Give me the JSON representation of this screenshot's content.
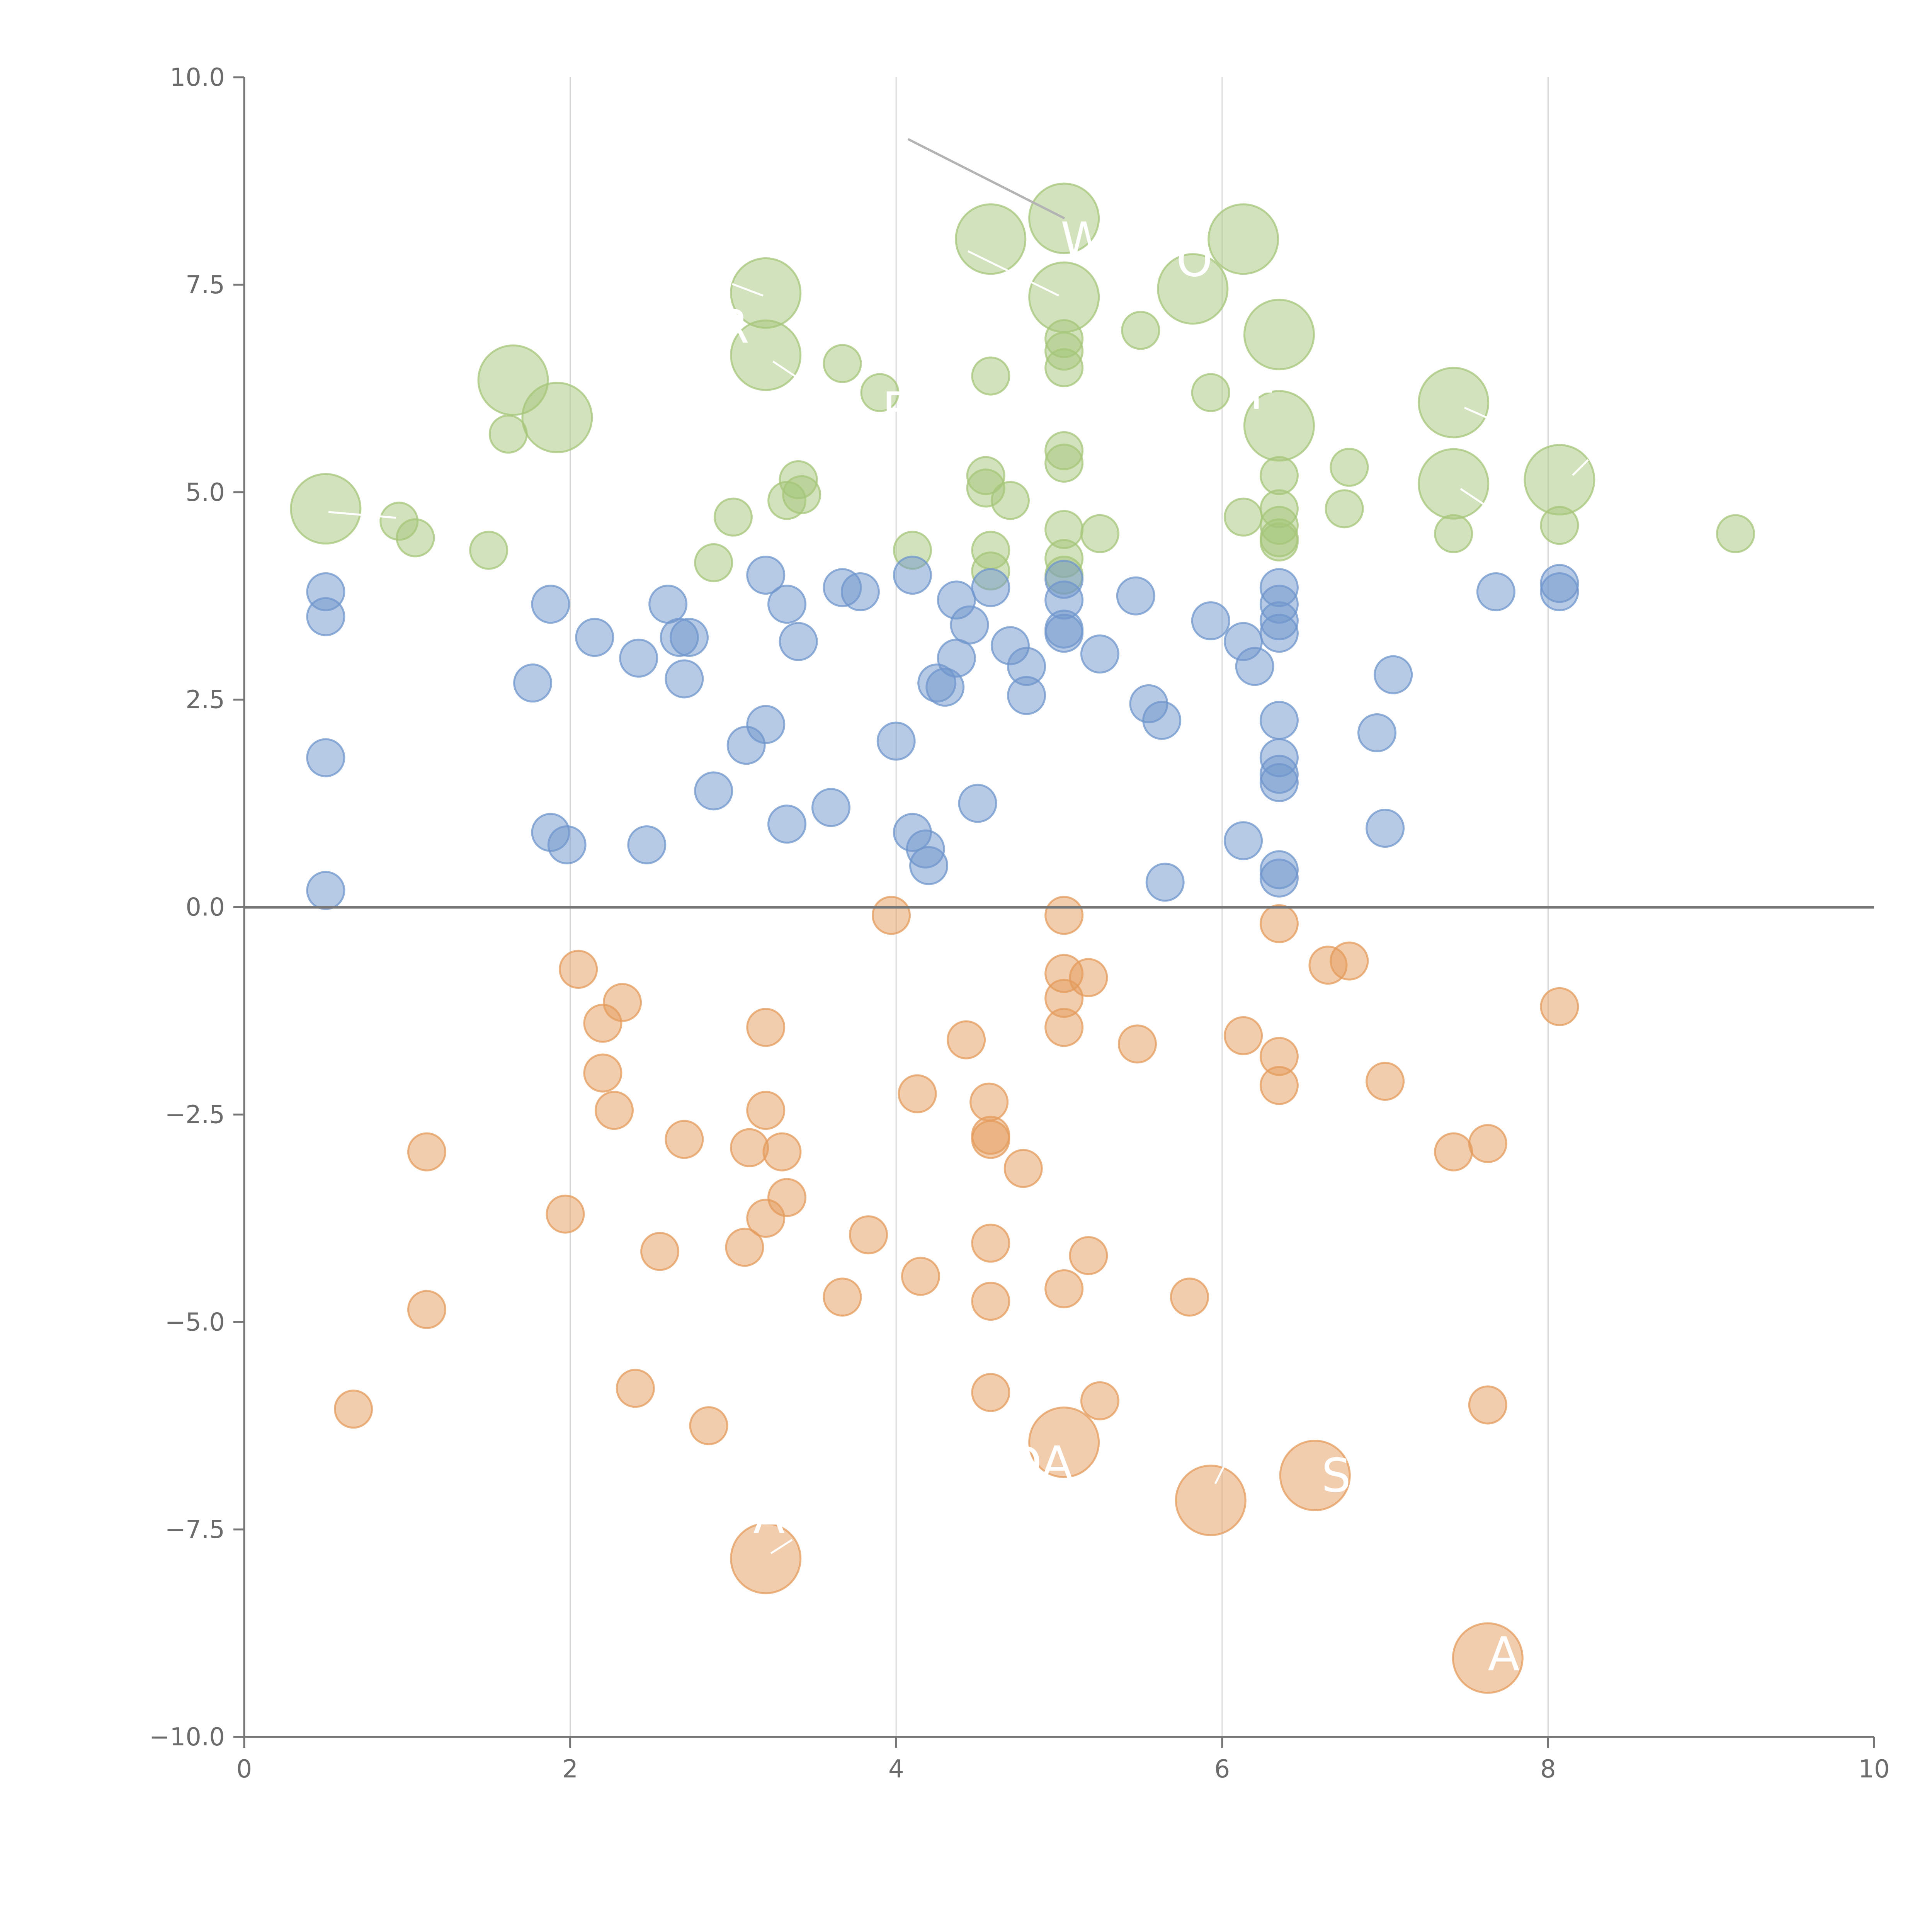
{
  "chart_data": {
    "type": "scatter",
    "title": "",
    "xlabel": "",
    "ylabel": "",
    "xlim": [
      0,
      10
    ],
    "ylim": [
      -10,
      10
    ],
    "x_ticks": [
      "0",
      "2",
      "4",
      "6",
      "8",
      "10"
    ],
    "y_ticks": [
      "10.0",
      "7.5",
      "5.0",
      "2.5",
      "0.0",
      "−2.5",
      "−5.0",
      "−7.5",
      "−10.0"
    ],
    "grid": "vertical",
    "zero_line": 0,
    "colors": {
      "green": "#a5c67a",
      "blue": "#6f96cc",
      "orange": "#e49b5c",
      "axis": "#777777",
      "grid": "#d9d9d9"
    },
    "series": [
      {
        "name": "green",
        "color": "#a5c67a",
        "points": [
          [
            0.5,
            4.8,
            1
          ],
          [
            0.95,
            4.65,
            0
          ],
          [
            1.05,
            4.45,
            0
          ],
          [
            1.5,
            4.3,
            0
          ],
          [
            1.62,
            5.7,
            0
          ],
          [
            1.65,
            6.35,
            1
          ],
          [
            1.92,
            5.9,
            1
          ],
          [
            2.88,
            4.15,
            0
          ],
          [
            3.0,
            4.7,
            0
          ],
          [
            3.2,
            7.4,
            1
          ],
          [
            3.2,
            6.65,
            1
          ],
          [
            3.33,
            4.9,
            0
          ],
          [
            3.4,
            5.15,
            0
          ],
          [
            3.42,
            4.97,
            0
          ],
          [
            3.67,
            6.55,
            0
          ],
          [
            3.9,
            6.2,
            0
          ],
          [
            4.1,
            4.3,
            0
          ],
          [
            4.55,
            5.2,
            0
          ],
          [
            4.55,
            5.05,
            0
          ],
          [
            4.58,
            4.3,
            0
          ],
          [
            4.58,
            4.05,
            0
          ],
          [
            4.58,
            6.4,
            0
          ],
          [
            4.58,
            8.05,
            1
          ],
          [
            4.7,
            4.9,
            0
          ],
          [
            5.03,
            8.3,
            1
          ],
          [
            5.03,
            7.35,
            1
          ],
          [
            5.03,
            6.85,
            0
          ],
          [
            5.03,
            6.7,
            0
          ],
          [
            5.03,
            6.5,
            0
          ],
          [
            5.03,
            5.5,
            0
          ],
          [
            5.03,
            5.35,
            0
          ],
          [
            5.03,
            4.55,
            0
          ],
          [
            5.03,
            4.2,
            0
          ],
          [
            5.03,
            4.0,
            0
          ],
          [
            5.25,
            4.5,
            0
          ],
          [
            5.5,
            6.95,
            0
          ],
          [
            5.82,
            7.45,
            1
          ],
          [
            5.93,
            6.2,
            0
          ],
          [
            6.13,
            4.7,
            0
          ],
          [
            6.13,
            8.05,
            1
          ],
          [
            6.35,
            6.9,
            1
          ],
          [
            6.35,
            5.8,
            1
          ],
          [
            6.35,
            5.2,
            0
          ],
          [
            6.35,
            4.8,
            0
          ],
          [
            6.35,
            4.6,
            0
          ],
          [
            6.35,
            4.45,
            0
          ],
          [
            6.35,
            4.4,
            0
          ],
          [
            6.75,
            4.8,
            0
          ],
          [
            6.78,
            5.3,
            0
          ],
          [
            7.42,
            6.08,
            1
          ],
          [
            7.42,
            5.1,
            1
          ],
          [
            7.42,
            4.5,
            0
          ],
          [
            8.07,
            5.15,
            1
          ],
          [
            8.07,
            4.6,
            0
          ],
          [
            9.15,
            4.5,
            0
          ]
        ]
      },
      {
        "name": "blue",
        "color": "#6f96cc",
        "points": [
          [
            0.5,
            3.8,
            0
          ],
          [
            0.5,
            3.5,
            0
          ],
          [
            0.5,
            1.8,
            0
          ],
          [
            0.5,
            0.2,
            0
          ],
          [
            1.77,
            2.7,
            0
          ],
          [
            1.88,
            3.65,
            0
          ],
          [
            1.88,
            0.9,
            0
          ],
          [
            1.98,
            0.75,
            0
          ],
          [
            2.15,
            3.25,
            0
          ],
          [
            2.42,
            3.0,
            0
          ],
          [
            2.47,
            0.75,
            0
          ],
          [
            2.6,
            3.65,
            0
          ],
          [
            2.67,
            3.25,
            0
          ],
          [
            2.7,
            2.75,
            0
          ],
          [
            2.73,
            3.25,
            0
          ],
          [
            2.88,
            1.4,
            0
          ],
          [
            3.08,
            1.95,
            0
          ],
          [
            3.2,
            4.0,
            0
          ],
          [
            3.2,
            2.2,
            0
          ],
          [
            3.33,
            3.65,
            0
          ],
          [
            3.33,
            1.0,
            0
          ],
          [
            3.4,
            3.2,
            0
          ],
          [
            3.6,
            1.2,
            0
          ],
          [
            3.67,
            3.85,
            0
          ],
          [
            3.78,
            3.8,
            0
          ],
          [
            4.0,
            2.0,
            0
          ],
          [
            4.1,
            4.0,
            0
          ],
          [
            4.1,
            0.9,
            0
          ],
          [
            4.18,
            0.7,
            0
          ],
          [
            4.2,
            0.5,
            0
          ],
          [
            4.25,
            2.7,
            0
          ],
          [
            4.3,
            2.65,
            0
          ],
          [
            4.37,
            3.7,
            0
          ],
          [
            4.37,
            3.0,
            0
          ],
          [
            4.45,
            3.4,
            0
          ],
          [
            4.5,
            1.25,
            0
          ],
          [
            4.58,
            3.85,
            0
          ],
          [
            4.7,
            3.15,
            0
          ],
          [
            4.8,
            2.9,
            0
          ],
          [
            4.8,
            2.55,
            0
          ],
          [
            5.03,
            3.95,
            0
          ],
          [
            5.03,
            3.7,
            0
          ],
          [
            5.03,
            3.35,
            0
          ],
          [
            5.03,
            3.3,
            0
          ],
          [
            5.25,
            3.05,
            0
          ],
          [
            5.47,
            3.75,
            0
          ],
          [
            5.55,
            2.45,
            0
          ],
          [
            5.63,
            2.25,
            0
          ],
          [
            5.65,
            0.3,
            0
          ],
          [
            5.93,
            3.45,
            0
          ],
          [
            6.13,
            3.2,
            0
          ],
          [
            6.13,
            0.8,
            0
          ],
          [
            6.2,
            2.9,
            0
          ],
          [
            6.35,
            3.85,
            0
          ],
          [
            6.35,
            3.65,
            0
          ],
          [
            6.35,
            3.45,
            0
          ],
          [
            6.35,
            3.3,
            0
          ],
          [
            6.35,
            2.25,
            0
          ],
          [
            6.35,
            1.8,
            0
          ],
          [
            6.35,
            1.6,
            0
          ],
          [
            6.35,
            1.5,
            0
          ],
          [
            6.35,
            0.45,
            0
          ],
          [
            6.35,
            0.35,
            0
          ],
          [
            6.95,
            2.1,
            0
          ],
          [
            7.0,
            0.95,
            0
          ],
          [
            7.05,
            2.8,
            0
          ],
          [
            7.68,
            3.8,
            0
          ],
          [
            8.07,
            3.9,
            0
          ],
          [
            8.07,
            3.8,
            0
          ]
        ]
      },
      {
        "name": "orange",
        "color": "#e49b5c",
        "points": [
          [
            0.67,
            -6.05,
            0
          ],
          [
            1.12,
            -2.95,
            0
          ],
          [
            1.12,
            -4.85,
            0
          ],
          [
            1.97,
            -3.7,
            0
          ],
          [
            2.05,
            -0.75,
            0
          ],
          [
            2.2,
            -1.4,
            0
          ],
          [
            2.2,
            -2.0,
            0
          ],
          [
            2.27,
            -2.45,
            0
          ],
          [
            2.32,
            -1.15,
            0
          ],
          [
            2.4,
            -5.8,
            0
          ],
          [
            2.55,
            -4.15,
            0
          ],
          [
            2.7,
            -2.8,
            0
          ],
          [
            2.85,
            -6.25,
            0
          ],
          [
            3.07,
            -4.1,
            0
          ],
          [
            3.1,
            -2.9,
            0
          ],
          [
            3.2,
            -1.45,
            0
          ],
          [
            3.2,
            -2.45,
            0
          ],
          [
            3.2,
            -3.75,
            0
          ],
          [
            3.2,
            -7.85,
            1
          ],
          [
            3.3,
            -2.95,
            0
          ],
          [
            3.33,
            -3.5,
            0
          ],
          [
            3.67,
            -4.7,
            0
          ],
          [
            3.83,
            -3.95,
            0
          ],
          [
            3.97,
            -0.1,
            0
          ],
          [
            4.13,
            -2.25,
            0
          ],
          [
            4.15,
            -4.45,
            0
          ],
          [
            4.43,
            -1.6,
            0
          ],
          [
            4.57,
            -2.35,
            0
          ],
          [
            4.58,
            -2.75,
            0
          ],
          [
            4.58,
            -2.8,
            0
          ],
          [
            4.58,
            -4.05,
            0
          ],
          [
            4.58,
            -4.75,
            0
          ],
          [
            4.58,
            -5.85,
            0
          ],
          [
            4.78,
            -3.15,
            0
          ],
          [
            5.03,
            -0.1,
            0
          ],
          [
            5.03,
            -0.8,
            0
          ],
          [
            5.03,
            -1.1,
            0
          ],
          [
            5.03,
            -1.45,
            0
          ],
          [
            5.03,
            -4.6,
            0
          ],
          [
            5.03,
            -6.45,
            1
          ],
          [
            5.18,
            -0.85,
            0
          ],
          [
            5.18,
            -4.2,
            0
          ],
          [
            5.25,
            -5.95,
            0
          ],
          [
            5.48,
            -1.65,
            0
          ],
          [
            5.8,
            -4.7,
            0
          ],
          [
            5.93,
            -7.15,
            1
          ],
          [
            6.13,
            -1.55,
            0
          ],
          [
            6.35,
            -0.2,
            0
          ],
          [
            6.35,
            -1.8,
            0
          ],
          [
            6.35,
            -2.15,
            0
          ],
          [
            6.57,
            -6.85,
            1
          ],
          [
            6.65,
            -0.7,
            0
          ],
          [
            6.78,
            -0.65,
            0
          ],
          [
            7.0,
            -2.1,
            0
          ],
          [
            7.42,
            -2.95,
            0
          ],
          [
            7.63,
            -2.85,
            0
          ],
          [
            7.63,
            -6.0,
            0
          ],
          [
            7.63,
            -9.05,
            1
          ],
          [
            8.07,
            -1.2,
            0
          ]
        ]
      }
    ],
    "annotations": [
      {
        "text": "R",
        "x": 3.0,
        "y": 7.0
      },
      {
        "text": "P",
        "x": 4.0,
        "y": 6.0
      },
      {
        "text": "W",
        "x": 5.15,
        "y": 8.05
      },
      {
        "text": "O",
        "x": 5.83,
        "y": 7.8
      },
      {
        "text": "F",
        "x": 6.25,
        "y": 6.2
      },
      {
        "text": "DA",
        "x": 4.88,
        "y": -6.7
      },
      {
        "text": "S",
        "x": 6.7,
        "y": -6.85
      },
      {
        "text": "A",
        "x": 3.22,
        "y": -7.35
      },
      {
        "text": "AI",
        "x": 7.77,
        "y": -9.0
      }
    ]
  }
}
